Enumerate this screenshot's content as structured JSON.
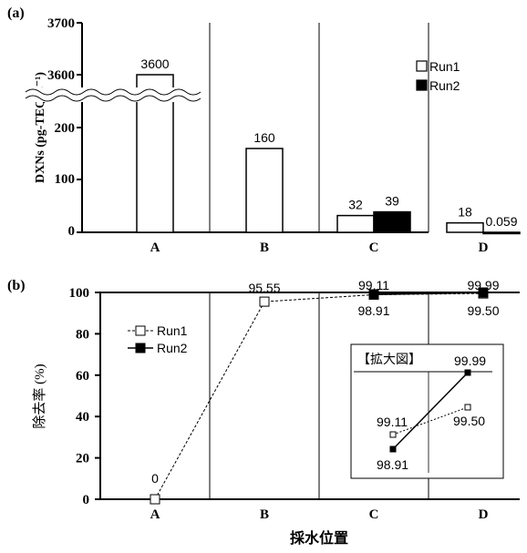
{
  "chart_data": [
    {
      "panel_label": "(a)",
      "type": "bar",
      "categories": [
        "A",
        "B",
        "C",
        "D"
      ],
      "series": [
        {
          "name": "Run1",
          "values": [
            3600,
            160,
            32,
            18
          ],
          "color": "#ffffff"
        },
        {
          "name": "Run2",
          "values": [
            null,
            null,
            39,
            0.059
          ],
          "color": "#000000"
        }
      ],
      "data_labels": {
        "Run1": [
          "3600",
          "160",
          "32",
          "18"
        ],
        "Run2": [
          "",
          "",
          "39",
          "0.059"
        ]
      },
      "ylabel": "DXNs (pg-TEQ L⁻¹)",
      "yticks_lower": [
        "0",
        "100",
        "200"
      ],
      "yticks_upper": [
        "3600",
        "3700"
      ],
      "ylim_lower": [
        0,
        250
      ],
      "ylim_upper": [
        3550,
        3700
      ],
      "broken_axis": true,
      "legend_position": "upper-right"
    },
    {
      "panel_label": "(b)",
      "type": "line",
      "categories": [
        "A",
        "B",
        "C",
        "D"
      ],
      "series": [
        {
          "name": "Run1",
          "values": [
            0,
            95.55,
            98.91,
            99.5
          ],
          "style": "dashed, open square"
        },
        {
          "name": "Run2",
          "values": [
            null,
            null,
            99.11,
            99.99
          ],
          "style": "solid, filled square"
        }
      ],
      "data_labels": [
        "0",
        "95.55",
        "99.11",
        "98.91",
        "99.99",
        "99.50"
      ],
      "ylabel": "除去率 (%)",
      "xlabel": "採水位置",
      "yticks": [
        "0",
        "20",
        "40",
        "60",
        "80",
        "100"
      ],
      "ylim": [
        0,
        100
      ],
      "legend_position": "upper-left",
      "inset": {
        "title": "【拡大図】",
        "labels": [
          "99.99",
          "99.11",
          "99.50",
          "98.91"
        ]
      }
    }
  ]
}
